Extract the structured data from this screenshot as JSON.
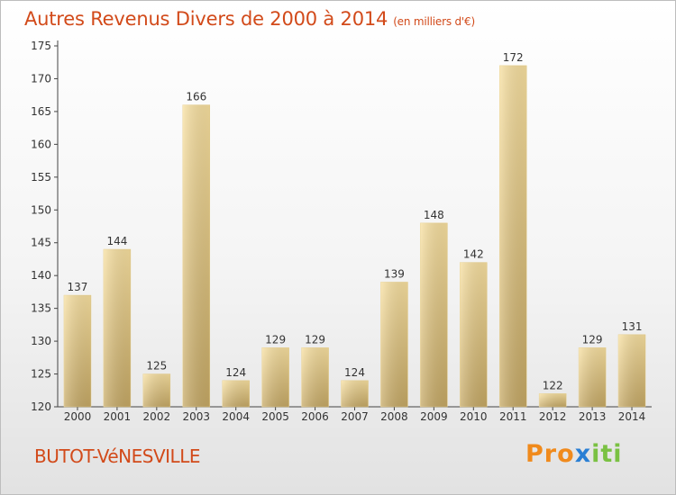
{
  "title": "Autres Revenus Divers de 2000 à 2014",
  "subtitle": "(en milliers d'€)",
  "commune": "BUTOT-VéNESVILLE",
  "logo": {
    "letters": [
      "P",
      "r",
      "o",
      "x",
      "i",
      "t",
      "i"
    ],
    "colors": [
      "#f08a1c",
      "#f08a1c",
      "#f08a1c",
      "#2a7fd4",
      "#7ac143",
      "#7ac143",
      "#7ac143"
    ]
  },
  "colors": {
    "title": "#d24a1a",
    "bar_light": "#f7dc98",
    "bar_dark": "#c9ad6c",
    "axis": "#333333"
  },
  "chart_data": {
    "type": "bar",
    "categories": [
      "2000",
      "2001",
      "2002",
      "2003",
      "2004",
      "2005",
      "2006",
      "2007",
      "2008",
      "2009",
      "2010",
      "2011",
      "2012",
      "2013",
      "2014"
    ],
    "values": [
      137,
      144,
      125,
      166,
      124,
      129,
      129,
      124,
      139,
      148,
      142,
      172,
      122,
      129,
      131
    ],
    "data_labels": [
      "137",
      "144",
      "125",
      "166",
      "124",
      "129",
      "129",
      "124",
      "139",
      "148",
      "142",
      "172",
      "122",
      "129",
      "131"
    ],
    "ylim": [
      120,
      175
    ],
    "yticks": [
      "120",
      "125",
      "130",
      "135",
      "140",
      "145",
      "150",
      "155",
      "160",
      "165",
      "170",
      "175"
    ],
    "grid": false,
    "legend": "none"
  }
}
